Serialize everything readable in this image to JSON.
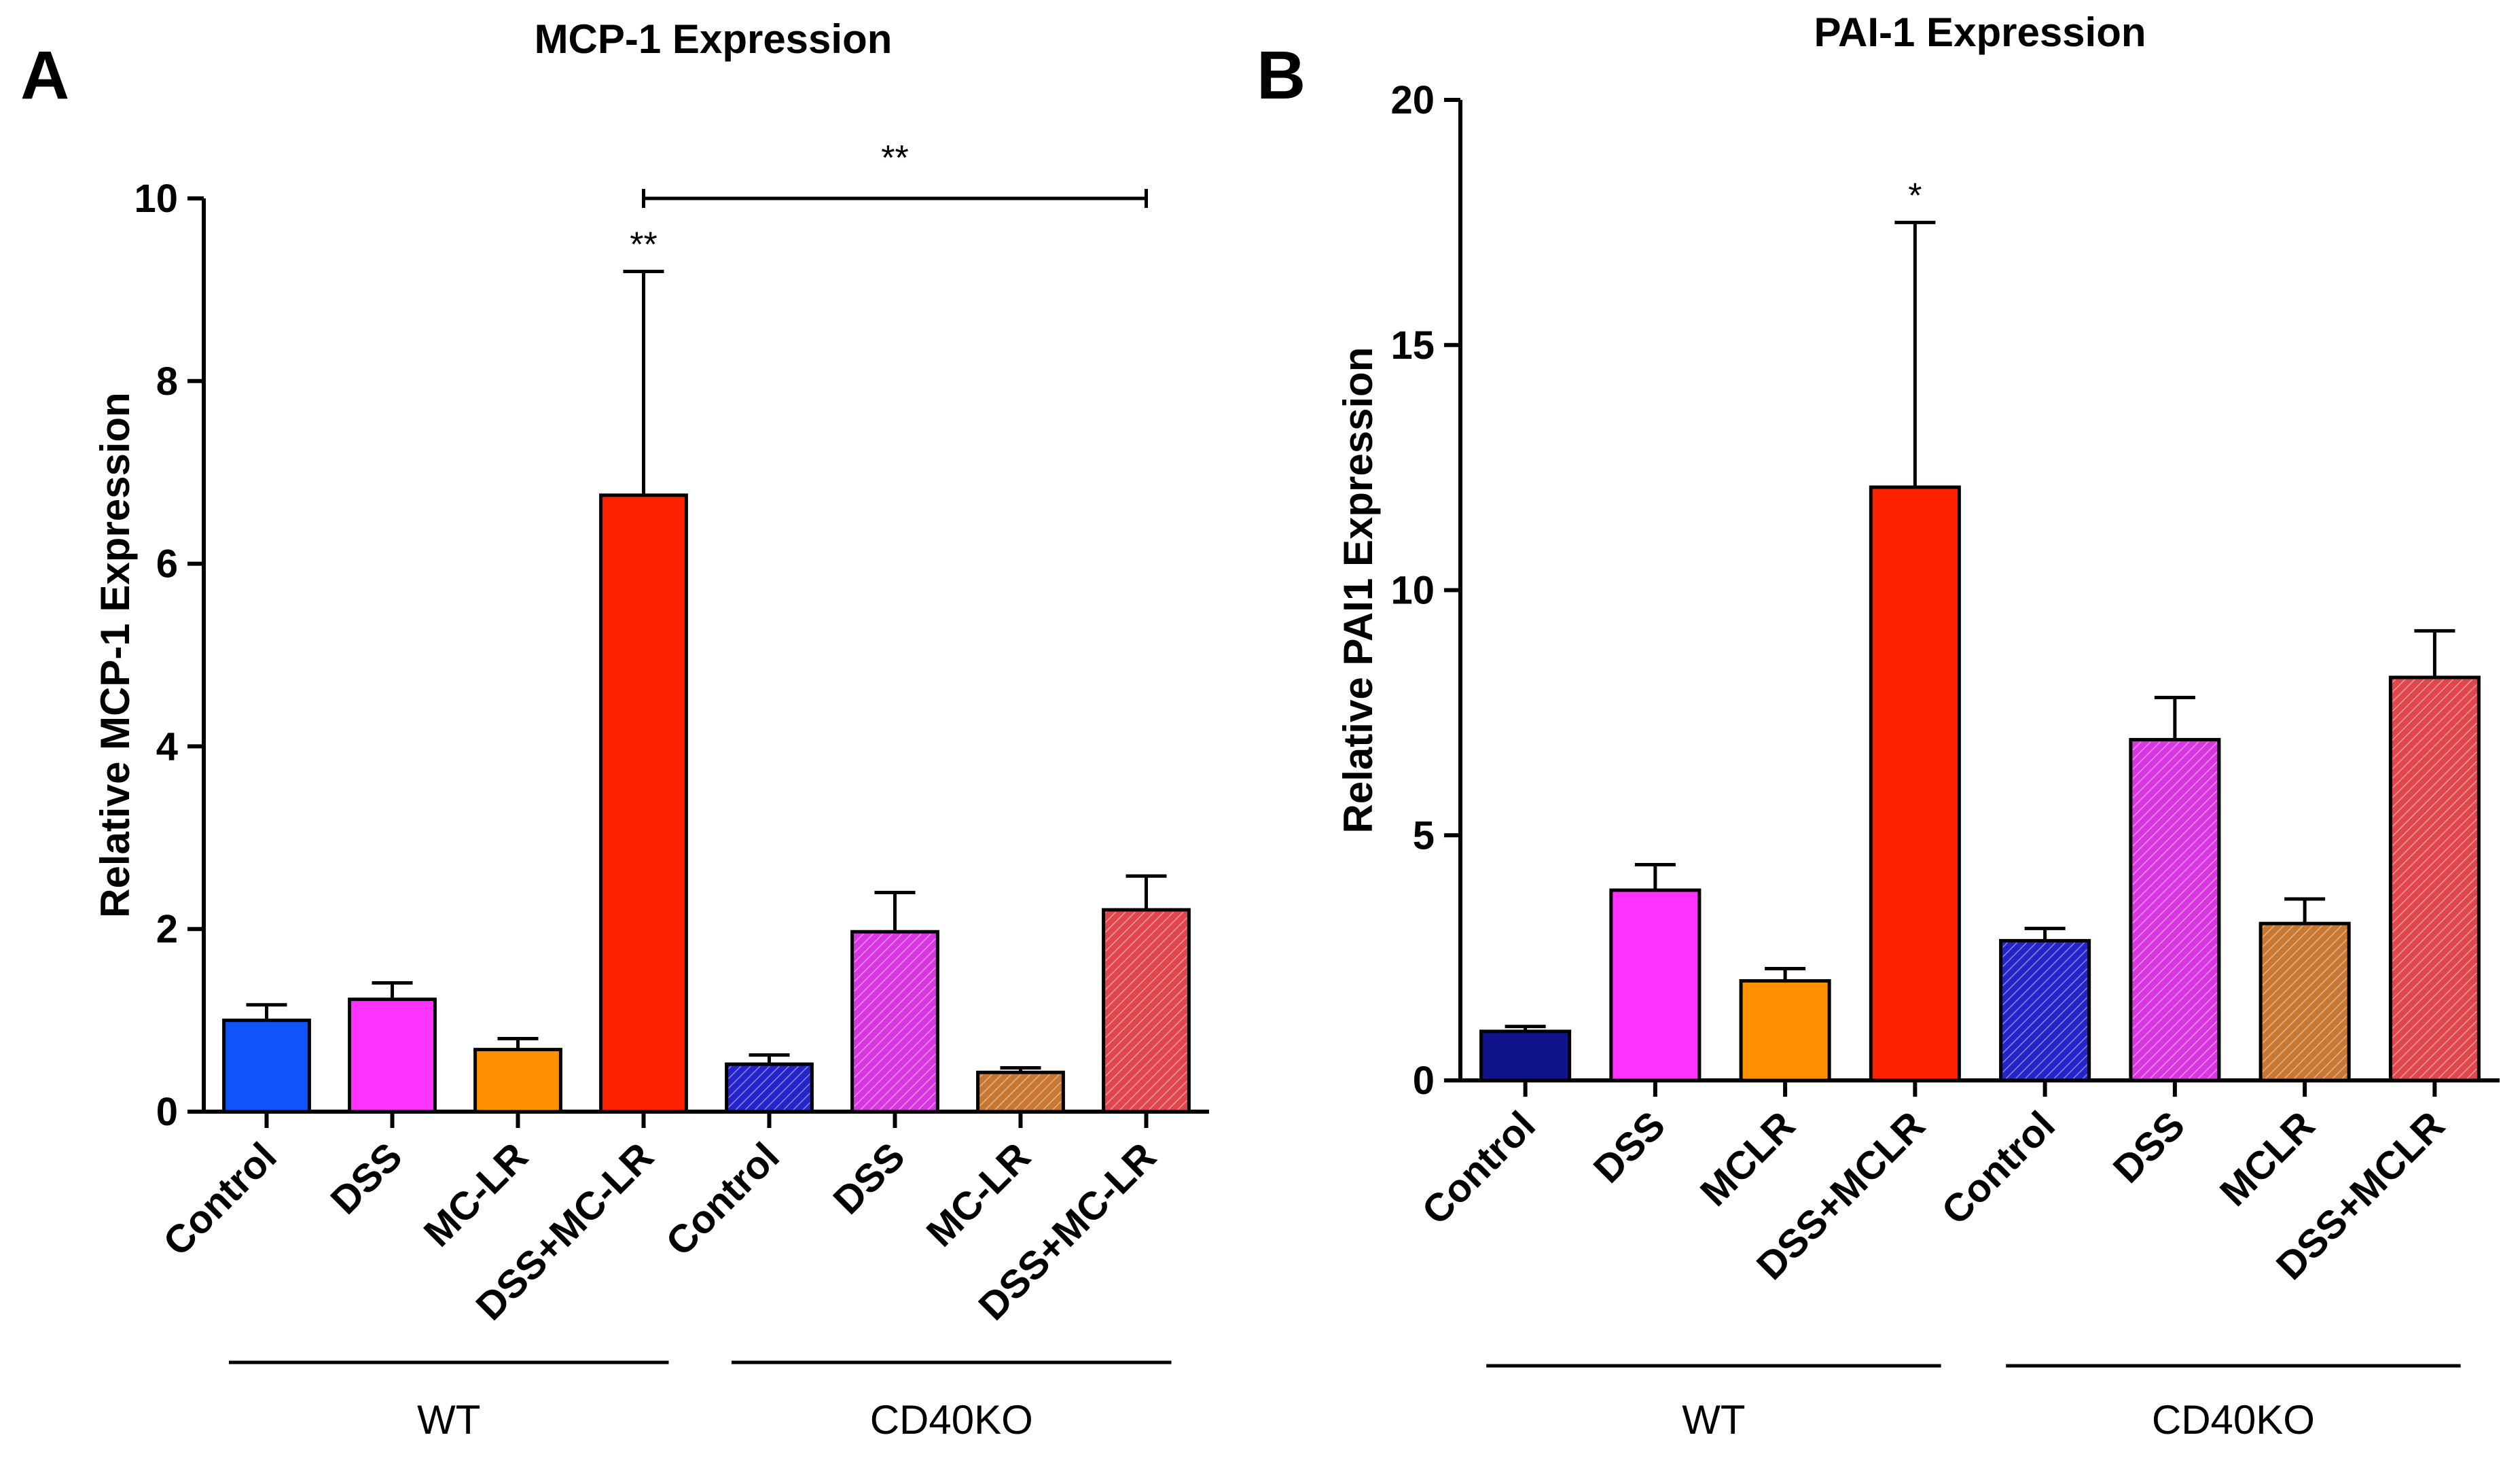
{
  "figure": {
    "panels": [
      {
        "letter": "A"
      },
      {
        "letter": "B"
      }
    ]
  },
  "chart_data": [
    {
      "type": "bar",
      "title": "MCP-1 Expression",
      "xlabel": "",
      "ylabel": "Relative MCP-1 Expression",
      "ylim": [
        0,
        10
      ],
      "yticks": [
        0,
        2,
        4,
        6,
        8,
        10
      ],
      "categories": [
        "Control",
        "DSS",
        "MC-LR",
        "DSS+MC-LR",
        "Control",
        "DSS",
        "MC-LR",
        "DSS+MC-LR"
      ],
      "values": [
        1.0,
        1.23,
        0.68,
        6.75,
        0.52,
        1.97,
        0.43,
        2.21
      ],
      "errors": [
        0.17,
        0.18,
        0.12,
        2.45,
        0.1,
        0.43,
        0.05,
        0.37
      ],
      "colors": [
        "#1053fb",
        "#ff33ff",
        "#ff9100",
        "#ff2200",
        "#2424c8",
        "#d836e0",
        "#c87832",
        "#e0474c"
      ],
      "hatched": [
        false,
        false,
        false,
        false,
        true,
        true,
        true,
        true
      ],
      "significance": [
        {
          "category_index": 3,
          "label": "**"
        }
      ],
      "brackets": [
        {
          "from_index": 3,
          "to_index": 7,
          "y": 10,
          "label": "**"
        }
      ],
      "groups": [
        {
          "label": "WT",
          "from_index": 0,
          "to_index": 3
        },
        {
          "label": "CD40KO",
          "from_index": 4,
          "to_index": 7
        }
      ]
    },
    {
      "type": "bar",
      "title": "PAI-1 Expression",
      "xlabel": "",
      "ylabel": "Relative PAI1 Expression",
      "ylim": [
        0,
        20
      ],
      "yticks": [
        0,
        5,
        10,
        15,
        20
      ],
      "categories": [
        "Control",
        "DSS",
        "MCLR",
        "DSS+MCLR",
        "Control",
        "DSS",
        "MCLR",
        "DSS+MCLR"
      ],
      "values": [
        1.0,
        3.88,
        2.03,
        12.1,
        2.85,
        6.95,
        3.2,
        8.22
      ],
      "errors": [
        0.1,
        0.52,
        0.25,
        5.4,
        0.25,
        0.86,
        0.5,
        0.95
      ],
      "colors": [
        "#0f148c",
        "#ff33ff",
        "#ff9100",
        "#ff2200",
        "#2424c8",
        "#d836e0",
        "#c87832",
        "#e0474c"
      ],
      "hatched": [
        false,
        false,
        false,
        false,
        true,
        true,
        true,
        true
      ],
      "significance": [
        {
          "category_index": 3,
          "label": "*"
        }
      ],
      "brackets": [],
      "groups": [
        {
          "label": "WT",
          "from_index": 0,
          "to_index": 3
        },
        {
          "label": "CD40KO",
          "from_index": 4,
          "to_index": 7
        }
      ]
    }
  ]
}
